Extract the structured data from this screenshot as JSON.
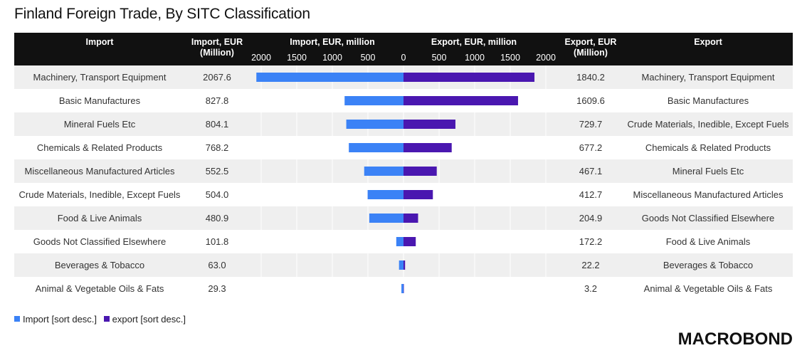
{
  "title": "Finland Foreign Trade, By SITC Classification",
  "headers": {
    "import": "Import",
    "import_value": "Import, EUR (Million)",
    "import_axis": "Import, EUR, million",
    "export_axis": "Export, EUR, million",
    "export_value": "Export, EUR (Million)",
    "export": "Export"
  },
  "import_ticks": [
    "2000",
    "1500",
    "1000",
    "500",
    "0"
  ],
  "export_ticks": [
    "500",
    "1000",
    "1500",
    "2000"
  ],
  "legend": {
    "import_label": "Import [sort desc.]",
    "export_label": "export [sort desc.]"
  },
  "brand": "MACROBOND",
  "colors": {
    "import": "#3b82f6",
    "export": "#4a17b0",
    "header": "#111111",
    "alt_row": "#efefef"
  },
  "chart_data": {
    "type": "bar",
    "title": "Finland Foreign Trade, By SITC Classification",
    "import_axis_label": "Import, EUR, million",
    "export_axis_label": "Export, EUR, million",
    "xlim": [
      -2000,
      2000
    ],
    "rows": [
      {
        "import_label": "Machinery, Transport Equipment",
        "import_value": 2067.6,
        "import_text": "2067.6",
        "export_label": "Machinery, Transport Equipment",
        "export_value": 1840.2,
        "export_text": "1840.2"
      },
      {
        "import_label": "Basic Manufactures",
        "import_value": 827.8,
        "import_text": "827.8",
        "export_label": "Basic Manufactures",
        "export_value": 1609.6,
        "export_text": "1609.6"
      },
      {
        "import_label": "Mineral Fuels Etc",
        "import_value": 804.1,
        "import_text": "804.1",
        "export_label": "Crude Materials, Inedible, Except Fuels",
        "export_value": 729.7,
        "export_text": "729.7"
      },
      {
        "import_label": "Chemicals & Related Products",
        "import_value": 768.2,
        "import_text": "768.2",
        "export_label": "Chemicals & Related Products",
        "export_value": 677.2,
        "export_text": "677.2"
      },
      {
        "import_label": "Miscellaneous Manufactured Articles",
        "import_value": 552.5,
        "import_text": "552.5",
        "export_label": "Mineral Fuels Etc",
        "export_value": 467.1,
        "export_text": "467.1"
      },
      {
        "import_label": "Crude Materials, Inedible, Except Fuels",
        "import_value": 504.0,
        "import_text": "504.0",
        "export_label": "Miscellaneous Manufactured Articles",
        "export_value": 412.7,
        "export_text": "412.7"
      },
      {
        "import_label": "Food & Live Animals",
        "import_value": 480.9,
        "import_text": "480.9",
        "export_label": "Goods Not Classified Elsewhere",
        "export_value": 204.9,
        "export_text": "204.9"
      },
      {
        "import_label": "Goods Not Classified Elsewhere",
        "import_value": 101.8,
        "import_text": "101.8",
        "export_label": "Food & Live Animals",
        "export_value": 172.2,
        "export_text": "172.2"
      },
      {
        "import_label": "Beverages & Tobacco",
        "import_value": 63.0,
        "import_text": "63.0",
        "export_label": "Beverages & Tobacco",
        "export_value": 22.2,
        "export_text": "22.2"
      },
      {
        "import_label": "Animal & Vegetable Oils & Fats",
        "import_value": 29.3,
        "import_text": "29.3",
        "export_label": "Animal & Vegetable Oils & Fats",
        "export_value": 3.2,
        "export_text": "3.2"
      }
    ],
    "series": [
      {
        "name": "Import [sort desc.]",
        "color": "#3b82f6"
      },
      {
        "name": "export [sort desc.]",
        "color": "#4a17b0"
      }
    ]
  }
}
